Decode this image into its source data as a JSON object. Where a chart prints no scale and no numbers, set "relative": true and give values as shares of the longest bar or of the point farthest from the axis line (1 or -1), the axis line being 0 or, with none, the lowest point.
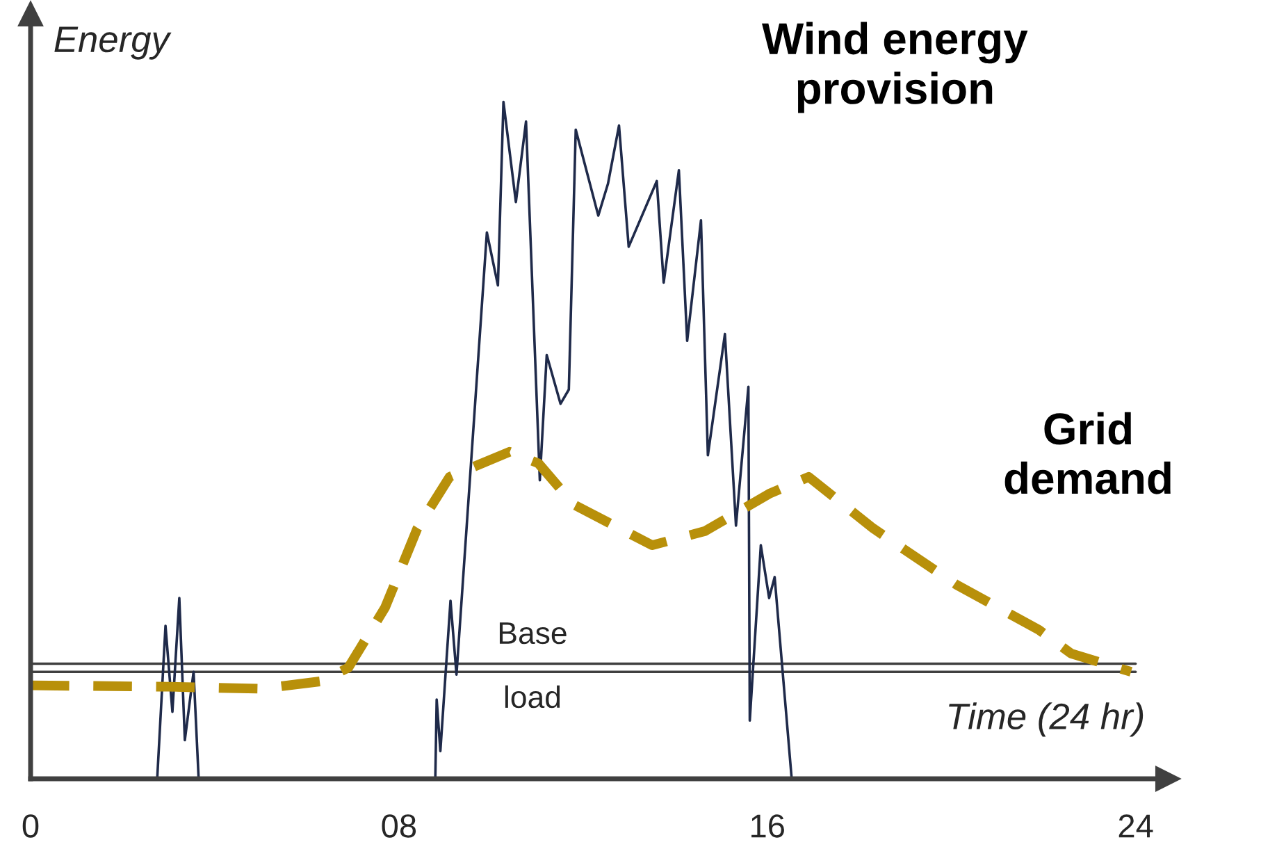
{
  "chart_data": {
    "type": "line",
    "relative": true,
    "xlabel": "Time (24 hr)",
    "ylabel": "Energy",
    "xlim": [
      0,
      24.7
    ],
    "xticks": [
      0,
      {
        "value": 8,
        "label": "08"
      },
      16,
      24
    ],
    "tick_labels": "x",
    "marker": "none",
    "series": [
      {
        "name": "Wind energy provision",
        "color": "#1f2a4a",
        "line_style": "solid",
        "x": [
          2.75,
          2.93,
          3.08,
          3.23,
          3.35,
          3.54,
          3.65,
          6.0,
          8.79,
          8.82,
          8.9,
          9.12,
          9.25,
          9.91,
          10.15,
          10.27,
          10.54,
          10.76,
          11.06,
          11.21,
          11.51,
          11.69,
          11.84,
          12.33,
          12.54,
          12.78,
          12.99,
          13.6,
          13.75,
          14.08,
          14.26,
          14.56,
          14.71,
          15.08,
          15.32,
          15.59,
          15.62,
          15.86,
          16.04,
          16.16,
          16.53
        ],
        "values": [
          0,
          0.226,
          0.099,
          0.267,
          0.057,
          0.158,
          0,
          null,
          0,
          0.117,
          0.041,
          0.263,
          0.154,
          0.807,
          0.729,
          1,
          0.852,
          0.971,
          0.441,
          0.626,
          0.554,
          0.575,
          0.959,
          0.832,
          0.879,
          0.965,
          0.786,
          0.883,
          0.733,
          0.899,
          0.647,
          0.825,
          0.478,
          0.657,
          0.374,
          0.579,
          0.086,
          0.345,
          0.267,
          0.298,
          0
        ]
      },
      {
        "name": "Grid demand",
        "color": "#b8900a",
        "line_style": "dashed",
        "x": [
          0,
          3,
          5,
          6.3,
          6.9,
          7.7,
          8.4,
          9.1,
          10.4,
          11.03,
          11.8,
          13.5,
          14.65,
          16.04,
          16.9,
          18.3,
          20.1,
          21.9,
          22.6,
          23.9
        ],
        "values": [
          0.138,
          0.136,
          0.133,
          0.144,
          0.164,
          0.253,
          0.37,
          0.446,
          0.483,
          0.466,
          0.405,
          0.345,
          0.366,
          0.421,
          0.446,
          0.37,
          0.287,
          0.22,
          0.185,
          0.158
        ]
      }
    ],
    "ref_lines": [
      {
        "axis": "y",
        "value": 0.17,
        "label": "Base",
        "color": "#404040"
      },
      {
        "axis": "y",
        "value": 0.158,
        "label": "load",
        "color": "#404040"
      }
    ]
  }
}
